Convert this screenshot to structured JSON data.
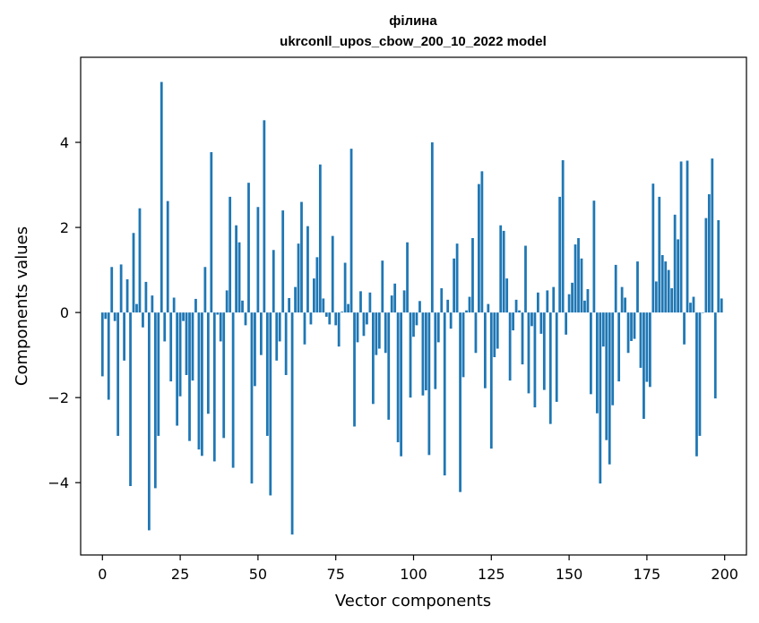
{
  "chart_data": {
    "type": "bar",
    "title": "філина",
    "subtitle": "ukrconll_upos_cbow_200_10_2022 model",
    "xlabel": "Vector components",
    "ylabel": "Components values",
    "xlim": [
      -7,
      207
    ],
    "ylim": [
      -5.7,
      6.0
    ],
    "x_ticks": [
      0,
      25,
      50,
      75,
      100,
      125,
      150,
      175,
      200
    ],
    "y_ticks": [
      -4,
      -2,
      0,
      2,
      4
    ],
    "y_tick_labels": [
      "−4",
      "−2",
      "0",
      "2",
      "4"
    ],
    "grid": false,
    "bar_color": "#1f77b4",
    "values": [
      -1.5,
      -0.15,
      -2.05,
      1.07,
      -0.2,
      -2.9,
      1.13,
      -1.13,
      0.78,
      -4.08,
      1.87,
      0.2,
      2.45,
      -0.35,
      0.72,
      -5.12,
      0.4,
      -4.13,
      -2.9,
      5.42,
      -0.68,
      2.62,
      -1.62,
      0.35,
      -2.66,
      -1.97,
      -0.2,
      -1.47,
      -3.02,
      -1.6,
      0.32,
      -3.22,
      -3.37,
      1.07,
      -2.38,
      3.77,
      -3.5,
      -0.05,
      -0.68,
      -2.95,
      0.52,
      2.72,
      -3.65,
      2.05,
      1.65,
      0.28,
      -0.3,
      3.05,
      -4.02,
      -1.73,
      2.48,
      -1.0,
      4.52,
      -2.9,
      -4.3,
      1.47,
      -1.13,
      -0.68,
      2.4,
      -1.47,
      0.34,
      -5.22,
      0.6,
      1.62,
      2.6,
      -0.75,
      2.03,
      -0.28,
      0.8,
      1.3,
      3.48,
      0.33,
      -0.1,
      -0.28,
      1.8,
      -0.3,
      -0.8,
      0.02,
      1.17,
      0.2,
      3.85,
      -2.68,
      -0.7,
      0.5,
      -0.55,
      -0.28,
      0.47,
      -2.15,
      -1.0,
      -0.85,
      1.22,
      -0.95,
      -2.52,
      0.4,
      0.68,
      -3.05,
      -3.38,
      0.52,
      1.65,
      -2.0,
      -0.57,
      -0.3,
      0.27,
      -1.95,
      -1.83,
      -3.35,
      4.0,
      -1.8,
      -0.7,
      0.57,
      -3.83,
      0.3,
      -0.38,
      1.27,
      1.62,
      -4.22,
      -1.52,
      0.05,
      0.37,
      1.75,
      -0.95,
      3.02,
      3.32,
      -1.78,
      0.2,
      -3.2,
      -1.05,
      -0.85,
      2.05,
      1.92,
      0.8,
      -1.6,
      -0.42,
      0.3,
      0.05,
      -1.22,
      1.57,
      -1.9,
      -0.32,
      -2.23,
      0.47,
      -0.5,
      -1.82,
      0.52,
      -2.62,
      0.6,
      -2.1,
      2.72,
      3.58,
      -0.52,
      0.43,
      0.7,
      1.6,
      1.75,
      1.27,
      0.28,
      0.55,
      -1.92,
      2.63,
      -2.37,
      -4.02,
      -0.8,
      -3.0,
      -3.57,
      -2.18,
      1.12,
      -1.62,
      0.6,
      0.35,
      -0.95,
      -0.67,
      -0.62,
      1.2,
      -1.3,
      -2.5,
      -1.63,
      -1.75,
      3.03,
      0.73,
      2.72,
      1.35,
      1.2,
      1.0,
      0.57,
      2.3,
      1.72,
      3.55,
      -0.75,
      3.57,
      0.23,
      0.37,
      -3.38,
      -2.9,
      0.0,
      2.22,
      2.78,
      3.62,
      -2.02,
      2.17,
      0.33
    ]
  }
}
